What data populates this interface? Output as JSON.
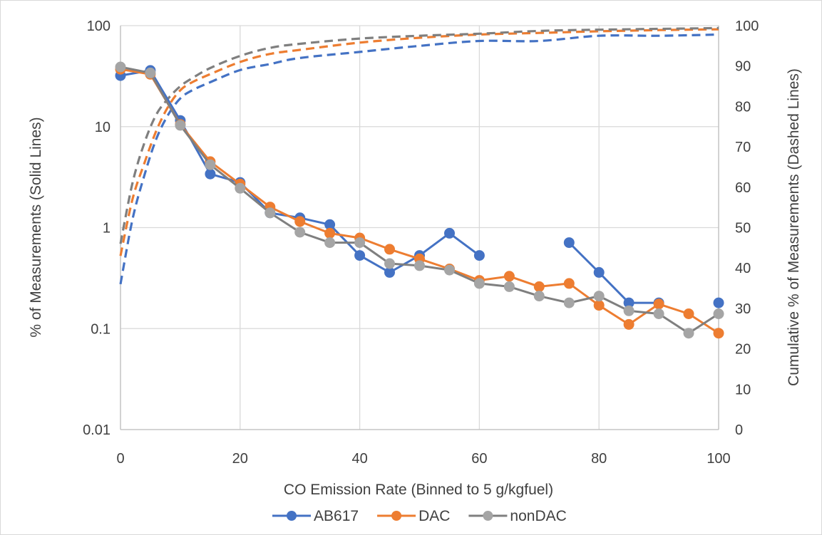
{
  "chart_data": {
    "type": "line",
    "xlabel": "CO Emission Rate (Binned to 5 g/kgfuel)",
    "ylabel": "% of Measurements (Solid Lines)",
    "y2label": "Cumulative % of Measurements (Dashed Lines)",
    "xlim": [
      0,
      100
    ],
    "ylim": [
      0.01,
      100
    ],
    "yscale": "log",
    "y2lim": [
      0,
      100
    ],
    "grid": true,
    "legend_position": "bottom",
    "x_ticks": [
      "0",
      "20",
      "40",
      "60",
      "80",
      "100"
    ],
    "y_ticks": [
      "0.01",
      "0.1",
      "1",
      "10",
      "100"
    ],
    "y2_ticks": [
      "0",
      "10",
      "20",
      "30",
      "40",
      "50",
      "60",
      "70",
      "80",
      "90",
      "100"
    ],
    "series": [
      {
        "name": "AB617",
        "color": "#4472C4",
        "style": "solid",
        "axis": "left",
        "x": [
          0,
          5,
          10,
          15,
          20,
          25,
          30,
          35,
          40,
          45,
          50,
          55,
          60,
          65,
          70,
          75,
          80,
          85,
          90,
          95,
          100
        ],
        "values": [
          32,
          36,
          11.5,
          3.4,
          2.8,
          1.4,
          1.25,
          1.07,
          0.53,
          0.36,
          0.53,
          0.88,
          0.53,
          null,
          null,
          0.71,
          0.36,
          0.18,
          0.18,
          null,
          0.18
        ]
      },
      {
        "name": "DAC",
        "color": "#ED7D31",
        "style": "solid",
        "axis": "left",
        "x": [
          0,
          5,
          10,
          15,
          20,
          25,
          30,
          35,
          40,
          45,
          50,
          55,
          60,
          65,
          70,
          75,
          80,
          85,
          90,
          95,
          100
        ],
        "values": [
          37,
          33,
          10.5,
          4.5,
          2.7,
          1.6,
          1.15,
          0.88,
          0.79,
          0.61,
          0.49,
          0.39,
          0.3,
          0.33,
          0.26,
          0.28,
          0.17,
          0.11,
          0.175,
          0.14,
          0.09
        ]
      },
      {
        "name": "nonDAC",
        "color": "#A5A5A5",
        "line_color": "#7F7F7F",
        "style": "solid",
        "axis": "left",
        "x": [
          0,
          5,
          10,
          15,
          20,
          25,
          30,
          35,
          40,
          45,
          50,
          55,
          60,
          65,
          70,
          75,
          80,
          85,
          90,
          95,
          100
        ],
        "values": [
          39,
          34,
          10.3,
          4.2,
          2.45,
          1.4,
          0.9,
          0.71,
          0.71,
          0.44,
          0.42,
          0.38,
          0.28,
          0.26,
          0.21,
          0.18,
          0.21,
          0.15,
          0.14,
          0.09,
          0.14
        ]
      },
      {
        "name": "AB617",
        "color": "#4472C4",
        "style": "dashed",
        "axis": "right",
        "x": [
          0,
          2,
          4,
          6,
          8,
          10,
          12,
          15,
          20,
          25,
          30,
          40,
          50,
          60,
          70,
          80,
          90,
          100
        ],
        "values": [
          36,
          52,
          63,
          72,
          78,
          82,
          84,
          86,
          89,
          90.5,
          92,
          93.5,
          95,
          96.2,
          96.2,
          97.5,
          97.5,
          97.8
        ]
      },
      {
        "name": "DAC",
        "color": "#ED7D31",
        "style": "dashed",
        "axis": "right",
        "x": [
          0,
          2,
          4,
          6,
          8,
          10,
          12,
          15,
          20,
          25,
          30,
          40,
          50,
          60,
          70,
          80,
          90,
          100
        ],
        "values": [
          43,
          57,
          66,
          74,
          80,
          84,
          86,
          88,
          91,
          93,
          94,
          95.8,
          97,
          97.8,
          98.2,
          98.6,
          98.9,
          99.1
        ]
      },
      {
        "name": "nonDAC",
        "color": "#7F7F7F",
        "style": "dashed",
        "axis": "right",
        "x": [
          0,
          2,
          4,
          6,
          8,
          10,
          12,
          15,
          20,
          25,
          30,
          40,
          50,
          60,
          70,
          80,
          90,
          100
        ],
        "values": [
          46,
          61,
          71,
          78,
          82,
          85,
          87,
          89.5,
          92.5,
          94.5,
          95.5,
          96.8,
          97.5,
          98,
          98.7,
          99,
          99.2,
          99.4
        ]
      }
    ]
  }
}
